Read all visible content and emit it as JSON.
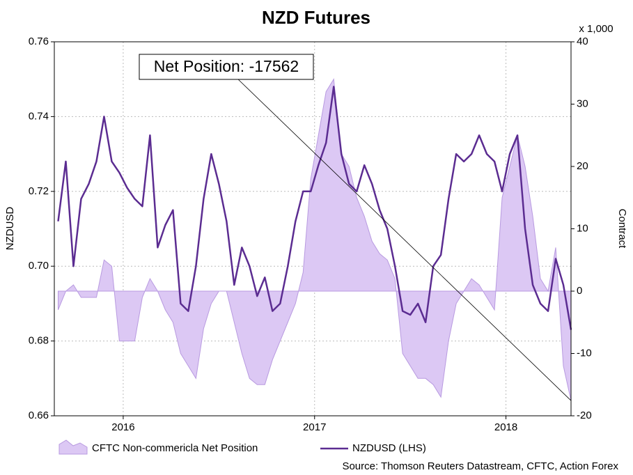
{
  "chart_data": {
    "type": "line-area",
    "title": "NZD Futures",
    "ylabel": "NZDUSD",
    "y2label": "Contract",
    "y2unit": "x 1,000",
    "annotation": "Net Position: -17562",
    "source": "Source: Thomson Reuters Datastream, CFTC, Action Forex",
    "grid": true,
    "xlim": [
      2015.64,
      2018.34
    ],
    "xticks": [
      2016,
      2017,
      2018
    ],
    "ylim": [
      0.66,
      0.76
    ],
    "yticks": [
      0.66,
      0.68,
      {
        "value": 0.7,
        "label": "0.70"
      },
      0.72,
      0.74,
      0.76
    ],
    "y2lim": [
      -20,
      40
    ],
    "y2ticks": [
      -20,
      -10,
      0,
      10,
      20,
      30,
      40
    ],
    "x": [
      2015.66,
      2015.7,
      2015.74,
      2015.78,
      2015.82,
      2015.86,
      2015.9,
      2015.94,
      2015.98,
      2016.02,
      2016.06,
      2016.1,
      2016.14,
      2016.18,
      2016.22,
      2016.26,
      2016.3,
      2016.34,
      2016.38,
      2016.42,
      2016.46,
      2016.5,
      2016.54,
      2016.58,
      2016.62,
      2016.66,
      2016.7,
      2016.74,
      2016.78,
      2016.82,
      2016.86,
      2016.9,
      2016.94,
      2016.98,
      2017.02,
      2017.06,
      2017.1,
      2017.14,
      2017.18,
      2017.22,
      2017.26,
      2017.3,
      2017.34,
      2017.38,
      2017.42,
      2017.46,
      2017.5,
      2017.54,
      2017.58,
      2017.62,
      2017.66,
      2017.7,
      2017.74,
      2017.78,
      2017.82,
      2017.86,
      2017.9,
      2017.94,
      2017.98,
      2018.02,
      2018.06,
      2018.1,
      2018.14,
      2018.18,
      2018.22,
      2018.26,
      2018.3,
      2018.34
    ],
    "series": [
      {
        "name": "CFTC Non-commericla Net Position",
        "axis": "y2",
        "kind": "area",
        "color": "#dcc8f4",
        "edge": "#b89ae0",
        "values": [
          -3,
          0,
          1,
          -1,
          -1,
          -1,
          5,
          4,
          -8,
          -8,
          -8,
          -1,
          2,
          0,
          -3,
          -5,
          -10,
          -12,
          -14,
          -6,
          -2,
          0,
          0,
          -5,
          -10,
          -14,
          -15,
          -15,
          -11,
          -8,
          -5,
          -2,
          3,
          18,
          25,
          32,
          34,
          22,
          20,
          15,
          12,
          8,
          6,
          5,
          2,
          -10,
          -12,
          -14,
          -14,
          -15,
          -17,
          -8,
          -2,
          0,
          2,
          1,
          -1,
          -3,
          15,
          20,
          25,
          20,
          12,
          2,
          0,
          7,
          -12,
          -17.562
        ]
      },
      {
        "name": "NZDUSD (LHS)",
        "axis": "y",
        "kind": "line",
        "color": "#5b2c91",
        "values": [
          0.712,
          0.728,
          0.7,
          0.718,
          0.722,
          0.728,
          0.74,
          0.728,
          0.725,
          0.721,
          0.718,
          0.716,
          0.735,
          0.705,
          0.711,
          0.715,
          0.69,
          0.688,
          0.7,
          0.718,
          0.73,
          0.722,
          0.712,
          0.695,
          0.705,
          0.7,
          0.692,
          0.697,
          0.688,
          0.69,
          0.7,
          0.712,
          0.72,
          0.72,
          0.727,
          0.733,
          0.748,
          0.73,
          0.722,
          0.72,
          0.727,
          0.722,
          0.715,
          0.71,
          0.7,
          0.688,
          0.687,
          0.69,
          0.685,
          0.7,
          0.703,
          0.718,
          0.73,
          0.728,
          0.73,
          0.735,
          0.73,
          0.728,
          0.72,
          0.73,
          0.735,
          0.71,
          0.695,
          0.69,
          0.688,
          0.702,
          0.695,
          0.683
        ]
      }
    ]
  }
}
